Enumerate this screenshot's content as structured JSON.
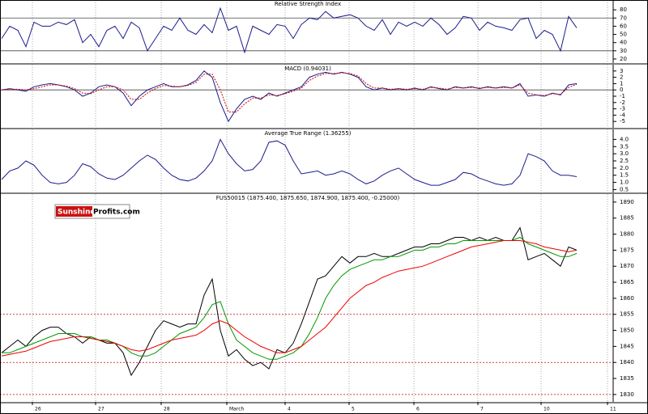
{
  "logo": {
    "part1": "Sunshine",
    "part2": "Profits.com"
  },
  "chart_data": [
    {
      "type": "line",
      "title": "Relative Strength Index",
      "ylim": [
        15,
        92
      ],
      "yticks": [
        20,
        30,
        40,
        50,
        60,
        70,
        80
      ],
      "hlines": [
        30,
        70
      ],
      "series": [
        {
          "color": "#1c1c8c",
          "values": [
            45,
            60,
            55,
            35,
            65,
            60,
            60,
            65,
            62,
            68,
            40,
            50,
            35,
            55,
            60,
            45,
            65,
            58,
            30,
            45,
            60,
            55,
            70,
            55,
            50,
            62,
            52,
            82,
            55,
            60,
            28,
            60,
            55,
            50,
            62,
            60,
            45,
            62,
            70,
            68,
            78,
            70,
            72,
            74,
            70,
            60,
            55,
            68,
            50,
            65,
            60,
            65,
            60,
            70,
            62,
            50,
            58,
            72,
            70,
            55,
            65,
            60,
            58,
            55,
            68,
            70,
            45,
            55,
            50,
            30,
            72,
            58
          ]
        }
      ]
    },
    {
      "type": "line",
      "title": "MACD (0.94031)",
      "ylim": [
        -6,
        4
      ],
      "yticks": [
        -5,
        -4,
        -3,
        -2,
        -1,
        0,
        1,
        2,
        3
      ],
      "hlines": [
        0
      ],
      "series": [
        {
          "color": "#1c1c8c",
          "values": [
            0,
            0.2,
            0,
            -0.2,
            0.5,
            0.8,
            1,
            0.8,
            0.5,
            0,
            -1,
            -0.5,
            0.5,
            0.8,
            0.5,
            -0.5,
            -2.5,
            -1,
            0,
            0.5,
            1,
            0.5,
            0.5,
            0.8,
            1.5,
            3,
            2,
            -2,
            -5,
            -3,
            -1.5,
            -1,
            -1.5,
            -0.5,
            -1,
            -0.5,
            0,
            0.5,
            2,
            2.5,
            2.8,
            2.5,
            2.8,
            2.5,
            2,
            0.5,
            0,
            0.3,
            0,
            0.2,
            0,
            0.3,
            0,
            0.5,
            0.2,
            0,
            0.5,
            0.3,
            0.5,
            0.2,
            0.5,
            0.3,
            0.5,
            0.3,
            1,
            -1,
            -0.8,
            -1,
            -0.5,
            -0.8,
            0.8,
            1
          ]
        },
        {
          "color": "#cc0000",
          "dashed": true,
          "values": [
            0,
            0.1,
            0.1,
            0,
            0.2,
            0.5,
            0.8,
            0.8,
            0.6,
            0.2,
            -0.5,
            -0.6,
            0,
            0.5,
            0.5,
            0,
            -1.5,
            -1.5,
            -0.5,
            0.2,
            0.7,
            0.6,
            0.5,
            0.7,
            1.2,
            2.5,
            2.5,
            0,
            -3.5,
            -3.5,
            -2.2,
            -1.3,
            -1.3,
            -0.8,
            -0.9,
            -0.6,
            -0.2,
            0.3,
            1.5,
            2.2,
            2.6,
            2.6,
            2.7,
            2.6,
            2.2,
            1,
            0.3,
            0.3,
            0.1,
            0.2,
            0.1,
            0.2,
            0.1,
            0.4,
            0.3,
            0.1,
            0.4,
            0.3,
            0.4,
            0.3,
            0.4,
            0.3,
            0.4,
            0.3,
            0.8,
            -0.5,
            -0.8,
            -0.9,
            -0.6,
            -0.7,
            0.4,
            0.9
          ]
        }
      ]
    },
    {
      "type": "line",
      "title": "Average True Range (1.36255)",
      "ylim": [
        0.3,
        4.7
      ],
      "yticks": [
        {
          "value": 0.5,
          "label": "0.5"
        },
        {
          "value": 1,
          "label": "1.0"
        },
        {
          "value": 1.5,
          "label": "1.5"
        },
        {
          "value": 2,
          "label": "2.0"
        },
        {
          "value": 2.5,
          "label": "2.5"
        },
        {
          "value": 3,
          "label": "3.0"
        },
        {
          "value": 3.5,
          "label": "3.5"
        },
        {
          "value": 4,
          "label": "4.0"
        }
      ],
      "series": [
        {
          "color": "#1c1c8c",
          "values": [
            1.2,
            1.8,
            2.0,
            2.5,
            2.2,
            1.5,
            1.0,
            0.9,
            1.0,
            1.5,
            2.3,
            2.1,
            1.6,
            1.3,
            1.2,
            1.5,
            2.0,
            2.5,
            2.9,
            2.6,
            2.0,
            1.5,
            1.2,
            1.1,
            1.3,
            1.8,
            2.5,
            4.0,
            3.0,
            2.3,
            1.8,
            1.9,
            2.5,
            3.8,
            3.9,
            3.6,
            2.5,
            1.6,
            1.7,
            1.8,
            1.5,
            1.6,
            1.8,
            1.6,
            1.2,
            0.9,
            1.1,
            1.5,
            1.8,
            2.0,
            1.6,
            1.2,
            1.0,
            0.8,
            0.8,
            1.0,
            1.2,
            1.7,
            1.6,
            1.3,
            1.1,
            0.9,
            0.8,
            0.9,
            1.5,
            3.0,
            2.8,
            2.5,
            1.8,
            1.5,
            1.5,
            1.4
          ]
        }
      ]
    },
    {
      "type": "line",
      "title": "FUS50015 (1875.400, 1875.650, 1874.900, 1875.400, -0.25000)",
      "ylim": [
        1827.7,
        1892.5
      ],
      "yticks": [
        1830,
        1835,
        1840,
        1845,
        1850,
        1855,
        1860,
        1865,
        1870,
        1875,
        1880,
        1885,
        1890
      ],
      "hlines": [
        1830,
        1840,
        1855
      ],
      "hline_color": "#cc0000",
      "hline_dashed": true,
      "x_tick_labels": [
        "26",
        "27",
        "28",
        "March",
        "4",
        "5",
        "6",
        "7",
        "10",
        "11"
      ],
      "series": [
        {
          "color": "#000000",
          "values": [
            1843,
            1845,
            1847,
            1845,
            1848,
            1850,
            1851,
            1851,
            1849,
            1848,
            1846,
            1848,
            1847,
            1846,
            1846,
            1843,
            1836,
            1840,
            1845,
            1850,
            1853,
            1852,
            1851,
            1852,
            1852,
            1861,
            1866,
            1850,
            1842,
            1844,
            1841,
            1839,
            1840,
            1838,
            1844,
            1843,
            1846,
            1852,
            1859,
            1866,
            1867,
            1870,
            1873,
            1871,
            1873,
            1873,
            1874,
            1873,
            1873,
            1874,
            1875,
            1876,
            1876,
            1877,
            1877,
            1878,
            1879,
            1879,
            1878,
            1879,
            1878,
            1879,
            1878,
            1878,
            1882,
            1872,
            1873,
            1874,
            1872,
            1870,
            1876,
            1875
          ]
        },
        {
          "color": "#009900",
          "values": [
            1843,
            1843,
            1844,
            1845,
            1846,
            1847,
            1848,
            1849,
            1849,
            1849,
            1848,
            1848,
            1847,
            1847,
            1846,
            1845,
            1843,
            1842,
            1842,
            1843,
            1845,
            1847,
            1849,
            1850,
            1851,
            1854,
            1858,
            1859,
            1852,
            1847,
            1845,
            1843,
            1842,
            1841,
            1841,
            1842,
            1843,
            1845,
            1849,
            1854,
            1860,
            1864,
            1867,
            1869,
            1870,
            1871,
            1872,
            1872,
            1873,
            1873,
            1874,
            1875,
            1875,
            1876,
            1876,
            1877,
            1877,
            1878,
            1878,
            1878,
            1878,
            1878,
            1878,
            1878,
            1879,
            1877,
            1876,
            1875,
            1874,
            1873,
            1873,
            1874
          ]
        },
        {
          "color": "#ee0000",
          "values": [
            1842,
            1842.5,
            1843,
            1843.5,
            1844.5,
            1845.5,
            1846.5,
            1847,
            1847.5,
            1848,
            1848,
            1847.5,
            1847,
            1846.5,
            1846,
            1845,
            1844,
            1843.5,
            1844,
            1845,
            1846,
            1847,
            1847.5,
            1848,
            1848.5,
            1850,
            1852,
            1853,
            1852,
            1850,
            1848,
            1846.5,
            1845,
            1844,
            1843,
            1843,
            1844,
            1845,
            1847,
            1849,
            1851,
            1854,
            1857,
            1860,
            1862,
            1864,
            1865,
            1866.5,
            1867.5,
            1868.5,
            1869,
            1869.5,
            1870,
            1871,
            1872,
            1873,
            1874,
            1875,
            1876,
            1876.5,
            1877,
            1877.5,
            1878,
            1878,
            1878,
            1877.5,
            1877,
            1876,
            1875.5,
            1875,
            1874.5,
            1875
          ]
        }
      ]
    }
  ]
}
